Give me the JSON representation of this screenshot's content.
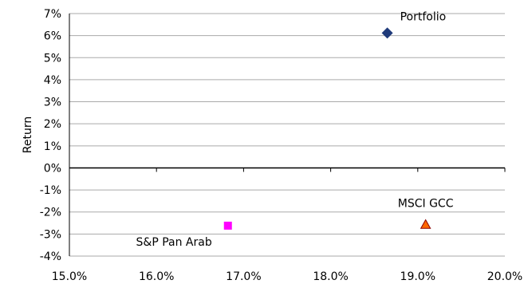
{
  "chart_data": {
    "type": "scatter",
    "title": "",
    "xlabel": "",
    "ylabel": "Return",
    "xlim": [
      0.15,
      0.2
    ],
    "ylim": [
      -0.04,
      0.07
    ],
    "x_ticks": [
      "15.0%",
      "16.0%",
      "17.0%",
      "18.0%",
      "19.0%",
      "20.0%"
    ],
    "y_ticks": [
      "7%",
      "6%",
      "5%",
      "4%",
      "3%",
      "2%",
      "1%",
      "0%",
      "-1%",
      "-2%",
      "-3%",
      "-4%"
    ],
    "grid": "horizontal",
    "points": [
      {
        "label": "Portfolio",
        "x": 0.1865,
        "y": 0.0612,
        "marker": "diamond",
        "color": "#1F3A7A"
      },
      {
        "label": "S&P Pan Arab",
        "x": 0.1682,
        "y": -0.0262,
        "marker": "square",
        "color": "#FF00FF"
      },
      {
        "label": "MSCI GCC",
        "x": 0.1909,
        "y": -0.0257,
        "marker": "triangle",
        "color": "#FF6600",
        "edge_color": "#8B0000"
      }
    ]
  }
}
